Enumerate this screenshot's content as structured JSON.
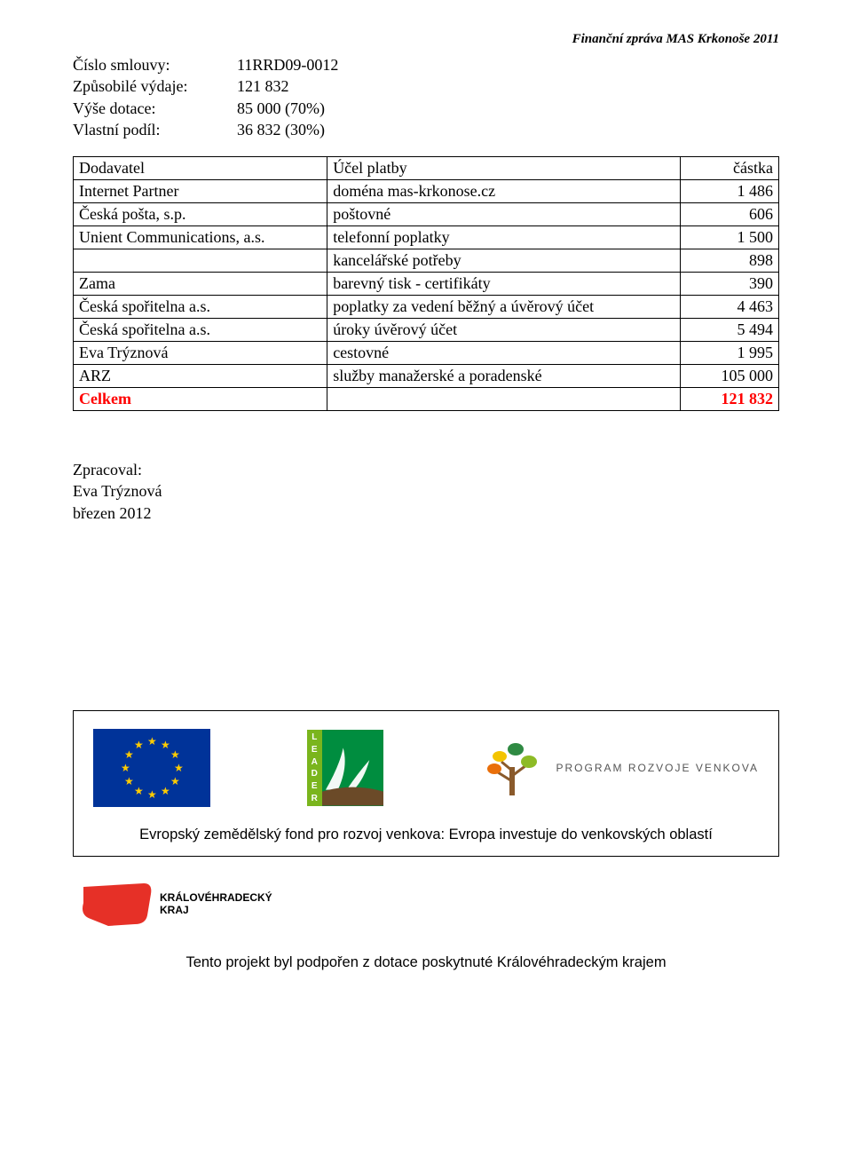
{
  "header_right": "Finanční zpráva MAS Krkonoše 2011",
  "kv": {
    "contract_no_label": "Číslo smlouvy:",
    "contract_no_value": "11RRD09-0012",
    "eligible_label": "Způsobilé výdaje:",
    "eligible_value": "121 832",
    "grant_label": "Výše dotace:",
    "grant_value": "85 000  (70%)",
    "own_label": "Vlastní podíl:",
    "own_value": "36 832  (30%)"
  },
  "table": {
    "col_supplier": "Dodavatel",
    "col_purpose": "Účel platby",
    "col_amount": "částka",
    "rows": [
      {
        "supplier": "Internet Partner",
        "purpose": "doména mas-krkonose.cz",
        "amount": "1 486"
      },
      {
        "supplier": "Česká pošta, s.p.",
        "purpose": "poštovné",
        "amount": "606"
      },
      {
        "supplier": "Unient Communications, a.s.",
        "purpose": "telefonní poplatky",
        "amount": "1 500"
      },
      {
        "supplier": "",
        "purpose": "kancelářské potřeby",
        "amount": "898"
      },
      {
        "supplier": "Zama",
        "purpose": "barevný tisk - certifikáty",
        "amount": "390"
      },
      {
        "supplier": "Česká spořitelna a.s.",
        "purpose": "poplatky za vedení  běžný a úvěrový účet",
        "amount": "4 463"
      },
      {
        "supplier": "Česká spořitelna a.s.",
        "purpose": "úroky  úvěrový účet",
        "amount": "5 494"
      },
      {
        "supplier": "Eva Trýznová",
        "purpose": "cestovné",
        "amount": "1 995"
      },
      {
        "supplier": "ARZ",
        "purpose": "služby manažerské a poradenské",
        "amount": "105 000"
      }
    ],
    "total_label": "Celkem",
    "total_value": "121 832",
    "total_color": "#ff0000"
  },
  "zpracoval": {
    "l1": "Zpracoval:",
    "l2": "Eva Trýznová",
    "l3": "březen 2012"
  },
  "logos": {
    "eu_flag_bg": "#003399",
    "eu_star_color": "#ffcc00",
    "leader_letters": [
      "L",
      "E",
      "A",
      "D",
      "E",
      "R"
    ],
    "leader_side_bg": "#7ab51d",
    "leader_main_bg": "#008d3f",
    "prv_line1": "PROGRAM ROZVOJE VENKOVA",
    "caption": "Evropský zemědělský fond pro rozvoj venkova: Evropa investuje do venkovských oblastí",
    "kraj_l1": "KRÁLOVÉHRADECKÝ",
    "kraj_l2": "KRAJ",
    "kraj_shape_color": "#e63027",
    "kraj_caption": "Tento projekt byl podpořen z dotace poskytnuté Královéhradeckým krajem"
  }
}
